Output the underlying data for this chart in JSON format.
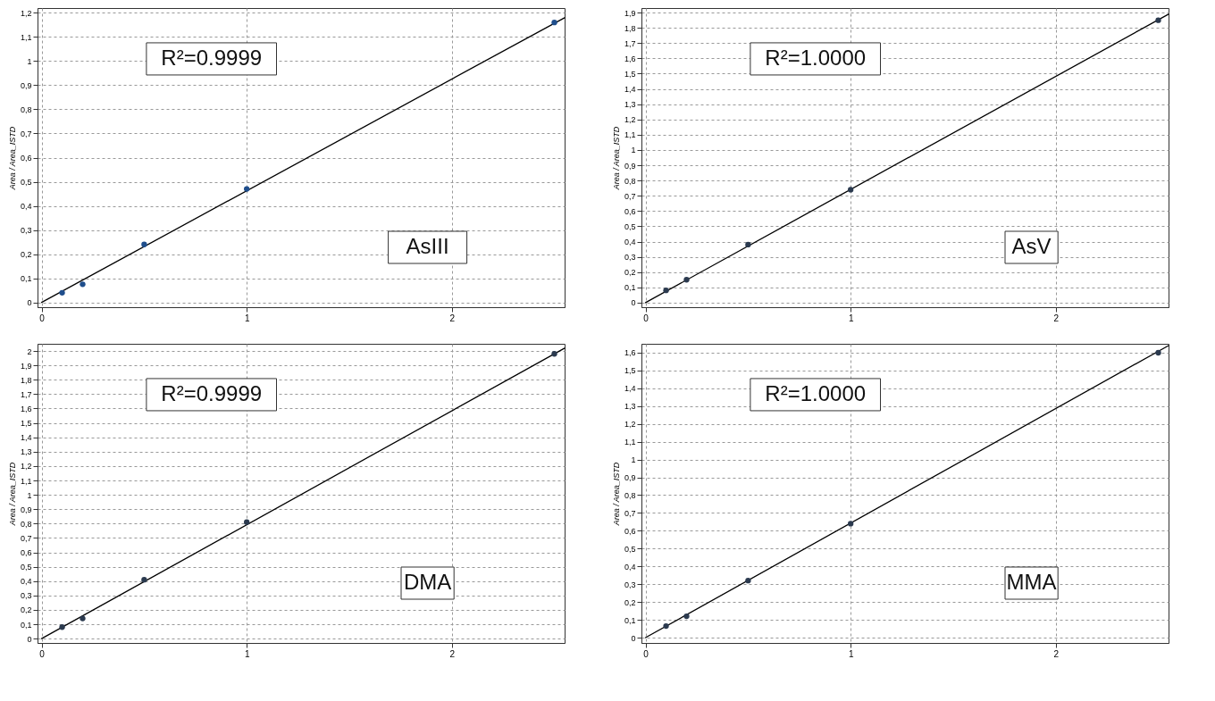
{
  "chart_data": [
    {
      "type": "scatter",
      "ylabel": "Area / Area_ISTD",
      "annotations": [
        "R²=0.9999",
        "AsIII"
      ],
      "grid": true,
      "xlim": [
        -0.02,
        2.55
      ],
      "xticks": [
        0,
        1,
        2
      ],
      "ylim": [
        -0.02,
        1.22
      ],
      "yticks": [
        0,
        {
          "value": 0.1,
          "label": "0,1"
        },
        {
          "value": 0.2,
          "label": "0,2"
        },
        {
          "value": 0.3,
          "label": "0,3"
        },
        {
          "value": 0.4,
          "label": "0,4"
        },
        {
          "value": 0.5,
          "label": "0,5"
        },
        {
          "value": 0.6,
          "label": "0,6"
        },
        {
          "value": 0.7,
          "label": "0,7"
        },
        {
          "value": 0.8,
          "label": "0,8"
        },
        {
          "value": 0.9,
          "label": "0,9"
        },
        1,
        {
          "value": 1.1,
          "label": "1,1"
        },
        {
          "value": 1.2,
          "label": "1,2"
        }
      ],
      "series": [
        {
          "type": "line",
          "color": "#000000",
          "x": [
            0,
            2.55
          ],
          "values": [
            0,
            1.18
          ]
        },
        {
          "type": "scatter",
          "color": "#1f4e8c",
          "marker": "circle",
          "x": [
            0.1,
            0.2,
            0.5,
            1,
            2.5
          ],
          "values": [
            0.04,
            0.075,
            0.24,
            0.47,
            1.16
          ]
        }
      ]
    },
    {
      "type": "scatter",
      "ylabel": "Area / Area_ISTD",
      "annotations": [
        "R²=1.0000",
        "AsV"
      ],
      "grid": true,
      "xlim": [
        -0.02,
        2.55
      ],
      "xticks": [
        0,
        1,
        2
      ],
      "ylim": [
        -0.03,
        1.93
      ],
      "yticks": [
        0,
        {
          "value": 0.1,
          "label": "0,1"
        },
        {
          "value": 0.2,
          "label": "0,2"
        },
        {
          "value": 0.3,
          "label": "0,3"
        },
        {
          "value": 0.4,
          "label": "0,4"
        },
        {
          "value": 0.5,
          "label": "0,5"
        },
        {
          "value": 0.6,
          "label": "0,6"
        },
        {
          "value": 0.7,
          "label": "0,7"
        },
        {
          "value": 0.8,
          "label": "0,8"
        },
        {
          "value": 0.9,
          "label": "0,9"
        },
        1,
        {
          "value": 1.1,
          "label": "1,1"
        },
        {
          "value": 1.2,
          "label": "1,2"
        },
        {
          "value": 1.3,
          "label": "1,3"
        },
        {
          "value": 1.4,
          "label": "1,4"
        },
        {
          "value": 1.5,
          "label": "1,5"
        },
        {
          "value": 1.6,
          "label": "1,6"
        },
        {
          "value": 1.7,
          "label": "1,7"
        },
        {
          "value": 1.8,
          "label": "1,8"
        },
        {
          "value": 1.9,
          "label": "1,9"
        }
      ],
      "series": [
        {
          "type": "line",
          "color": "#000000",
          "x": [
            0,
            2.55
          ],
          "values": [
            0,
            1.89
          ]
        },
        {
          "type": "scatter",
          "color": "#2b3a4f",
          "marker": "circle",
          "x": [
            0.1,
            0.2,
            0.5,
            1,
            2.5
          ],
          "values": [
            0.08,
            0.15,
            0.38,
            0.74,
            1.85
          ]
        }
      ]
    },
    {
      "type": "scatter",
      "ylabel": "Area / Area_ISTD",
      "annotations": [
        "R²=0.9999",
        "DMA"
      ],
      "grid": true,
      "xlim": [
        -0.02,
        2.55
      ],
      "xticks": [
        0,
        1,
        2
      ],
      "ylim": [
        -0.03,
        2.05
      ],
      "yticks": [
        0,
        {
          "value": 0.1,
          "label": "0,1"
        },
        {
          "value": 0.2,
          "label": "0,2"
        },
        {
          "value": 0.3,
          "label": "0,3"
        },
        {
          "value": 0.4,
          "label": "0,4"
        },
        {
          "value": 0.5,
          "label": "0,5"
        },
        {
          "value": 0.6,
          "label": "0,6"
        },
        {
          "value": 0.7,
          "label": "0,7"
        },
        {
          "value": 0.8,
          "label": "0,8"
        },
        {
          "value": 0.9,
          "label": "0,9"
        },
        1,
        {
          "value": 1.1,
          "label": "1,1"
        },
        {
          "value": 1.2,
          "label": "1,2"
        },
        {
          "value": 1.3,
          "label": "1,3"
        },
        {
          "value": 1.4,
          "label": "1,4"
        },
        {
          "value": 1.5,
          "label": "1,5"
        },
        {
          "value": 1.6,
          "label": "1,6"
        },
        {
          "value": 1.7,
          "label": "1,7"
        },
        {
          "value": 1.8,
          "label": "1,8"
        },
        {
          "value": 1.9,
          "label": "1,9"
        },
        2
      ],
      "series": [
        {
          "type": "line",
          "color": "#000000",
          "x": [
            0,
            2.55
          ],
          "values": [
            0,
            2.02
          ]
        },
        {
          "type": "scatter",
          "color": "#2b3a4f",
          "marker": "circle",
          "x": [
            0.1,
            0.2,
            0.5,
            1,
            2.5
          ],
          "values": [
            0.08,
            0.14,
            0.41,
            0.81,
            1.98
          ]
        }
      ]
    },
    {
      "type": "scatter",
      "ylabel": "Area / Area_ISTD",
      "annotations": [
        "R²=1.0000",
        "MMA"
      ],
      "grid": true,
      "xlim": [
        -0.02,
        2.55
      ],
      "xticks": [
        0,
        1,
        2
      ],
      "ylim": [
        -0.03,
        1.65
      ],
      "yticks": [
        0,
        {
          "value": 0.1,
          "label": "0,1"
        },
        {
          "value": 0.2,
          "label": "0,2"
        },
        {
          "value": 0.3,
          "label": "0,3"
        },
        {
          "value": 0.4,
          "label": "0,4"
        },
        {
          "value": 0.5,
          "label": "0,5"
        },
        {
          "value": 0.6,
          "label": "0,6"
        },
        {
          "value": 0.7,
          "label": "0,7"
        },
        {
          "value": 0.8,
          "label": "0,8"
        },
        {
          "value": 0.9,
          "label": "0,9"
        },
        1,
        {
          "value": 1.1,
          "label": "1,1"
        },
        {
          "value": 1.2,
          "label": "1,2"
        },
        {
          "value": 1.3,
          "label": "1,3"
        },
        {
          "value": 1.4,
          "label": "1,4"
        },
        {
          "value": 1.5,
          "label": "1,5"
        },
        {
          "value": 1.6,
          "label": "1,6"
        }
      ],
      "series": [
        {
          "type": "line",
          "color": "#000000",
          "x": [
            0,
            2.55
          ],
          "values": [
            0,
            1.64
          ]
        },
        {
          "type": "scatter",
          "color": "#2b3a4f",
          "marker": "circle",
          "x": [
            0.1,
            0.2,
            0.5,
            1,
            2.5
          ],
          "values": [
            0.065,
            0.12,
            0.32,
            0.64,
            1.6
          ]
        }
      ]
    }
  ]
}
